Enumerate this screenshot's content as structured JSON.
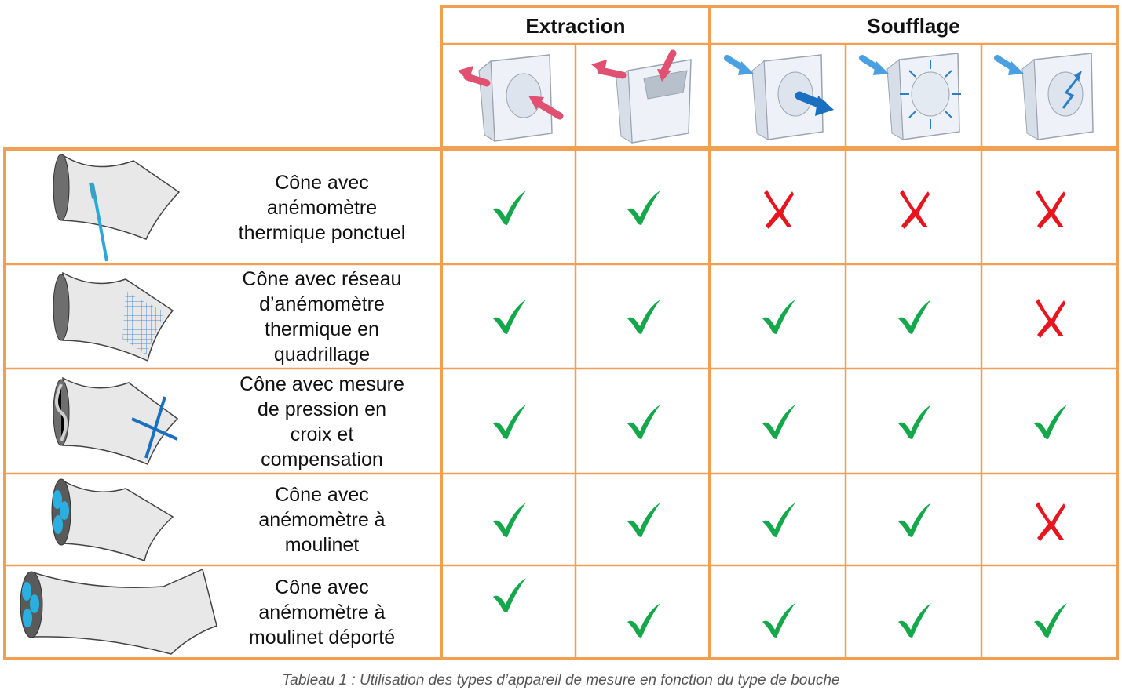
{
  "table": {
    "headers": [
      {
        "label": "Extraction"
      },
      {
        "label": "Soufflage"
      }
    ],
    "vent_icons": [
      "extraction-vent-icon",
      "extraction-vent-flap-icon",
      "supply-vent-icon",
      "supply-vent-diffuser-icon",
      "supply-vent-swirl-icon"
    ],
    "rows": [
      {
        "label": "Cône avec\nanémomètre\nthermique ponctuel",
        "device_icon": "cone-thermal-probe-icon",
        "marks": [
          "check",
          "check",
          "cross",
          "cross",
          "cross"
        ]
      },
      {
        "label": "Cône avec réseau\nd’anémomètre\nthermique en\nquadrillage",
        "device_icon": "cone-thermal-grid-icon",
        "marks": [
          "check",
          "check",
          "check",
          "check",
          "cross"
        ]
      },
      {
        "label": "Cône avec mesure\nde pression en\ncroix et\ncompensation",
        "device_icon": "cone-pressure-cross-icon",
        "marks": [
          "check",
          "check",
          "check",
          "check",
          "check"
        ]
      },
      {
        "label": "Cône avec\nanémomètre à\nmoulinet",
        "device_icon": "cone-vane-icon",
        "marks": [
          "check",
          "check",
          "check",
          "check",
          "cross"
        ]
      },
      {
        "label": "Cône avec\nanémomètre à\nmoulinet déporté",
        "device_icon": "cone-remote-vane-icon",
        "marks": [
          "check",
          "check",
          "check",
          "check",
          "check"
        ]
      }
    ]
  },
  "caption": "Tableau 1 : Utilisation des types d’appareil de mesure en fonction du type de bouche",
  "colors": {
    "border": "#f0a050",
    "check": "#14a84a",
    "cross": "#e8141e",
    "accent": "#2aa8d8",
    "arrow_red": "#e05070",
    "arrow_blue": "#2a7fc8"
  }
}
